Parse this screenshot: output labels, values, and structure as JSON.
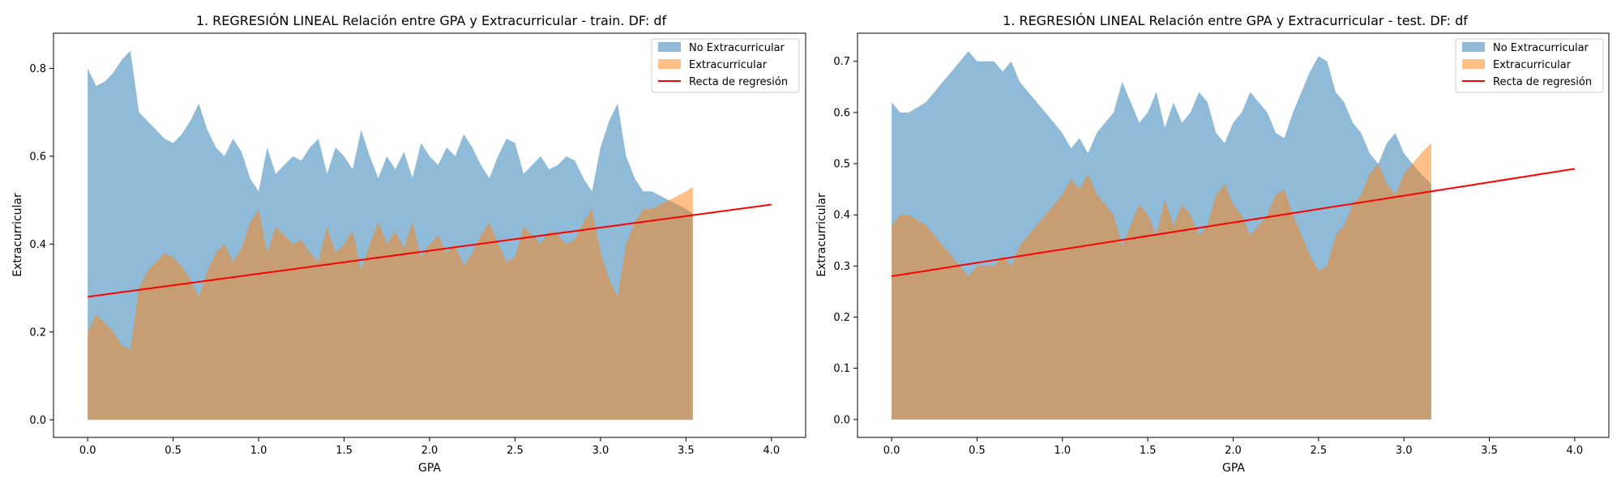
{
  "chart_data": [
    {
      "type": "area",
      "title": "1. REGRESIÓN LINEAL Relación entre GPA y Extracurricular - train. DF: df",
      "xlabel": "GPA",
      "ylabel": "Extracurricular",
      "xlim": [
        -0.2,
        4.2
      ],
      "ylim": [
        -0.04,
        0.88
      ],
      "xticks": [
        "0.0",
        "0.5",
        "1.0",
        "1.5",
        "2.0",
        "2.5",
        "3.0",
        "3.5",
        "4.0"
      ],
      "yticks": [
        "0.0",
        "0.2",
        "0.4",
        "0.6",
        "0.8"
      ],
      "grid": false,
      "legend_position": "top-right",
      "series": [
        {
          "name": "No Extracurricular",
          "color": "#1f77b4",
          "x": [
            0.0,
            0.05,
            0.1,
            0.15,
            0.2,
            0.25,
            0.3,
            0.35,
            0.4,
            0.45,
            0.5,
            0.55,
            0.6,
            0.65,
            0.7,
            0.75,
            0.8,
            0.85,
            0.9,
            0.95,
            1.0,
            1.05,
            1.1,
            1.15,
            1.2,
            1.25,
            1.3,
            1.35,
            1.4,
            1.45,
            1.5,
            1.55,
            1.6,
            1.65,
            1.7,
            1.75,
            1.8,
            1.85,
            1.9,
            1.95,
            2.0,
            2.05,
            2.1,
            2.15,
            2.2,
            2.25,
            2.3,
            2.35,
            2.4,
            2.45,
            2.5,
            2.55,
            2.6,
            2.65,
            2.7,
            2.75,
            2.8,
            2.85,
            2.9,
            2.95,
            3.0,
            3.05,
            3.1,
            3.15,
            3.2,
            3.25,
            3.3,
            3.35,
            3.4,
            3.45,
            3.5,
            3.54
          ],
          "values": [
            0.8,
            0.76,
            0.77,
            0.79,
            0.82,
            0.84,
            0.7,
            0.68,
            0.66,
            0.64,
            0.63,
            0.65,
            0.68,
            0.72,
            0.66,
            0.62,
            0.6,
            0.64,
            0.61,
            0.55,
            0.52,
            0.62,
            0.56,
            0.58,
            0.6,
            0.59,
            0.62,
            0.64,
            0.56,
            0.62,
            0.6,
            0.57,
            0.66,
            0.6,
            0.55,
            0.6,
            0.57,
            0.61,
            0.55,
            0.63,
            0.6,
            0.58,
            0.62,
            0.6,
            0.65,
            0.62,
            0.58,
            0.55,
            0.6,
            0.64,
            0.63,
            0.56,
            0.58,
            0.6,
            0.57,
            0.58,
            0.6,
            0.59,
            0.55,
            0.52,
            0.62,
            0.68,
            0.72,
            0.6,
            0.55,
            0.52,
            0.52,
            0.51,
            0.5,
            0.49,
            0.48,
            0.47
          ]
        },
        {
          "name": "Extracurricular",
          "color": "#ff7f0e",
          "x": [
            0.0,
            0.05,
            0.1,
            0.15,
            0.2,
            0.25,
            0.3,
            0.35,
            0.4,
            0.45,
            0.5,
            0.55,
            0.6,
            0.65,
            0.7,
            0.75,
            0.8,
            0.85,
            0.9,
            0.95,
            1.0,
            1.05,
            1.1,
            1.15,
            1.2,
            1.25,
            1.3,
            1.35,
            1.4,
            1.45,
            1.5,
            1.55,
            1.6,
            1.65,
            1.7,
            1.75,
            1.8,
            1.85,
            1.9,
            1.95,
            2.0,
            2.05,
            2.1,
            2.15,
            2.2,
            2.25,
            2.3,
            2.35,
            2.4,
            2.45,
            2.5,
            2.55,
            2.6,
            2.65,
            2.7,
            2.75,
            2.8,
            2.85,
            2.9,
            2.95,
            3.0,
            3.05,
            3.1,
            3.15,
            3.2,
            3.25,
            3.3,
            3.35,
            3.4,
            3.45,
            3.5,
            3.54
          ],
          "values": [
            0.2,
            0.24,
            0.22,
            0.2,
            0.17,
            0.16,
            0.3,
            0.34,
            0.36,
            0.38,
            0.37,
            0.35,
            0.32,
            0.28,
            0.34,
            0.38,
            0.4,
            0.36,
            0.39,
            0.45,
            0.48,
            0.38,
            0.44,
            0.42,
            0.4,
            0.41,
            0.38,
            0.36,
            0.44,
            0.38,
            0.4,
            0.43,
            0.34,
            0.4,
            0.45,
            0.4,
            0.43,
            0.39,
            0.45,
            0.37,
            0.4,
            0.42,
            0.38,
            0.4,
            0.35,
            0.38,
            0.42,
            0.45,
            0.4,
            0.36,
            0.37,
            0.44,
            0.42,
            0.4,
            0.43,
            0.42,
            0.4,
            0.41,
            0.45,
            0.48,
            0.38,
            0.32,
            0.28,
            0.4,
            0.45,
            0.48,
            0.48,
            0.49,
            0.5,
            0.51,
            0.52,
            0.53
          ]
        }
      ],
      "regression_line": {
        "name": "Recta de regresión",
        "color": "#ff0000",
        "x": [
          0.0,
          4.0
        ],
        "y": [
          0.28,
          0.49
        ]
      }
    },
    {
      "type": "area",
      "title": "1. REGRESIÓN LINEAL Relación entre GPA y Extracurricular - test. DF: df",
      "xlabel": "GPA",
      "ylabel": "Extracurricular",
      "xlim": [
        -0.2,
        4.2
      ],
      "ylim": [
        -0.035,
        0.755
      ],
      "xticks": [
        "0.0",
        "0.5",
        "1.0",
        "1.5",
        "2.0",
        "2.5",
        "3.0",
        "3.5",
        "4.0"
      ],
      "yticks": [
        "0.0",
        "0.1",
        "0.2",
        "0.3",
        "0.4",
        "0.5",
        "0.6",
        "0.7"
      ],
      "grid": false,
      "legend_position": "top-right",
      "series": [
        {
          "name": "No Extracurricular",
          "color": "#1f77b4",
          "x": [
            0.0,
            0.05,
            0.1,
            0.15,
            0.2,
            0.25,
            0.3,
            0.35,
            0.4,
            0.45,
            0.5,
            0.55,
            0.6,
            0.65,
            0.7,
            0.75,
            0.8,
            0.85,
            0.9,
            0.95,
            1.0,
            1.05,
            1.1,
            1.15,
            1.2,
            1.25,
            1.3,
            1.35,
            1.4,
            1.45,
            1.5,
            1.55,
            1.6,
            1.65,
            1.7,
            1.75,
            1.8,
            1.85,
            1.9,
            1.95,
            2.0,
            2.05,
            2.1,
            2.15,
            2.2,
            2.25,
            2.3,
            2.35,
            2.4,
            2.45,
            2.5,
            2.55,
            2.6,
            2.65,
            2.7,
            2.75,
            2.8,
            2.85,
            2.9,
            2.95,
            3.0,
            3.05,
            3.1,
            3.16
          ],
          "values": [
            0.62,
            0.6,
            0.6,
            0.61,
            0.62,
            0.64,
            0.66,
            0.68,
            0.7,
            0.72,
            0.7,
            0.7,
            0.7,
            0.68,
            0.7,
            0.66,
            0.64,
            0.62,
            0.6,
            0.58,
            0.56,
            0.53,
            0.55,
            0.52,
            0.56,
            0.58,
            0.6,
            0.66,
            0.62,
            0.58,
            0.6,
            0.64,
            0.57,
            0.62,
            0.58,
            0.6,
            0.64,
            0.62,
            0.56,
            0.54,
            0.58,
            0.6,
            0.64,
            0.62,
            0.6,
            0.56,
            0.55,
            0.6,
            0.64,
            0.68,
            0.71,
            0.7,
            0.64,
            0.62,
            0.58,
            0.56,
            0.52,
            0.5,
            0.54,
            0.56,
            0.52,
            0.5,
            0.48,
            0.46
          ]
        },
        {
          "name": "Extracurricular",
          "color": "#ff7f0e",
          "x": [
            0.0,
            0.05,
            0.1,
            0.15,
            0.2,
            0.25,
            0.3,
            0.35,
            0.4,
            0.45,
            0.5,
            0.55,
            0.6,
            0.65,
            0.7,
            0.75,
            0.8,
            0.85,
            0.9,
            0.95,
            1.0,
            1.05,
            1.1,
            1.15,
            1.2,
            1.25,
            1.3,
            1.35,
            1.4,
            1.45,
            1.5,
            1.55,
            1.6,
            1.65,
            1.7,
            1.75,
            1.8,
            1.85,
            1.9,
            1.95,
            2.0,
            2.05,
            2.1,
            2.15,
            2.2,
            2.25,
            2.3,
            2.35,
            2.4,
            2.45,
            2.5,
            2.55,
            2.6,
            2.65,
            2.7,
            2.75,
            2.8,
            2.85,
            2.9,
            2.95,
            3.0,
            3.05,
            3.1,
            3.16
          ],
          "values": [
            0.38,
            0.4,
            0.4,
            0.39,
            0.38,
            0.36,
            0.34,
            0.32,
            0.3,
            0.28,
            0.3,
            0.3,
            0.3,
            0.32,
            0.3,
            0.34,
            0.36,
            0.38,
            0.4,
            0.42,
            0.44,
            0.47,
            0.45,
            0.48,
            0.44,
            0.42,
            0.4,
            0.34,
            0.38,
            0.42,
            0.4,
            0.36,
            0.43,
            0.38,
            0.42,
            0.4,
            0.36,
            0.38,
            0.44,
            0.46,
            0.42,
            0.4,
            0.36,
            0.38,
            0.4,
            0.44,
            0.45,
            0.4,
            0.36,
            0.32,
            0.29,
            0.3,
            0.36,
            0.38,
            0.42,
            0.44,
            0.48,
            0.5,
            0.46,
            0.44,
            0.48,
            0.5,
            0.52,
            0.54
          ]
        }
      ],
      "regression_line": {
        "name": "Recta de regresión",
        "color": "#ff0000",
        "x": [
          0.0,
          4.0
        ],
        "y": [
          0.28,
          0.49
        ]
      }
    }
  ]
}
